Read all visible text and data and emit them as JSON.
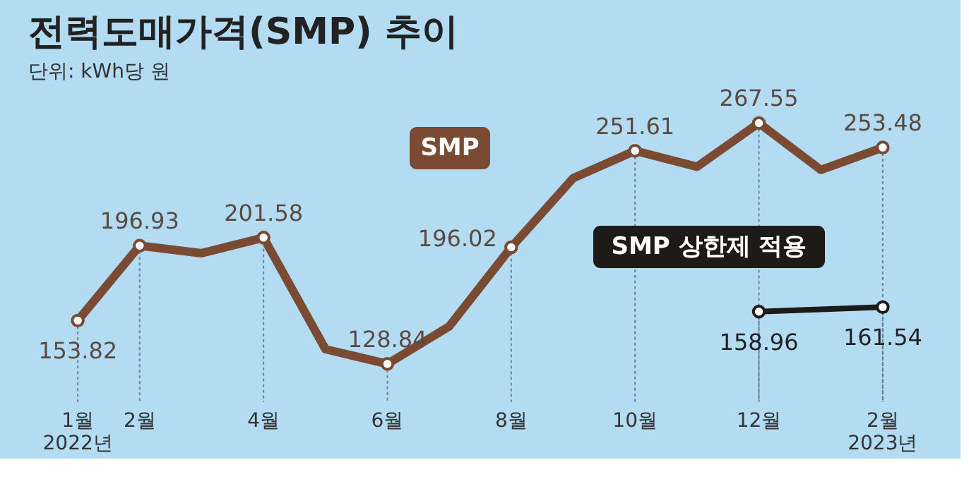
{
  "chart_data": {
    "type": "line",
    "title": "전력도매가격(SMP) 추이",
    "subtitle": "단위: kWh당 원",
    "categories": [
      "1월\n2022년",
      "2월",
      null,
      "4월",
      null,
      "6월",
      null,
      "8월",
      null,
      "10월",
      null,
      "12월",
      null,
      "2월\n2023년"
    ],
    "series": [
      {
        "name": "SMP",
        "color": "#7b4a32",
        "values": [
          153.82,
          196.93,
          192.6,
          201.58,
          137.3,
          128.84,
          150.5,
          196.02,
          235.8,
          251.61,
          242.4,
          267.55,
          240.6,
          253.48
        ],
        "value_labels": [
          "153.82",
          "196.93",
          null,
          "201.58",
          null,
          "128.84",
          null,
          "196.02",
          null,
          "251.61",
          null,
          "267.55",
          null,
          "253.48"
        ]
      },
      {
        "name": "SMP 상한제 적용",
        "color": "#1e1a18",
        "values": [
          null,
          null,
          null,
          null,
          null,
          null,
          null,
          null,
          null,
          null,
          null,
          158.96,
          null,
          161.54
        ],
        "value_labels": [
          null,
          null,
          null,
          null,
          null,
          null,
          null,
          null,
          null,
          null,
          null,
          "158.96",
          null,
          "161.54"
        ]
      }
    ],
    "marker": "circle",
    "line_style": "solid",
    "grid": "x"
  }
}
